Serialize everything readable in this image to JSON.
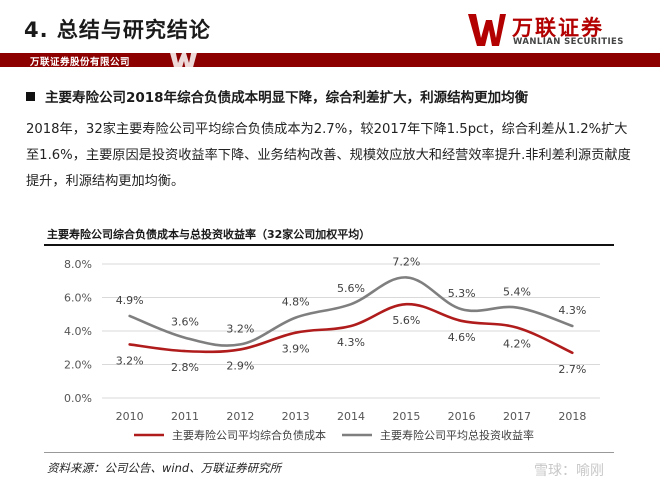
{
  "header": {
    "title": "4. 总结与研究结论",
    "logo_cn": "万联证券",
    "logo_en": "WANLIAN SECURITIES",
    "banner": "万联证券股份有限公司"
  },
  "headline": "主要寿险公司2018年综合负债成本明显下降，综合利差扩大，利源结构更加均衡",
  "body": "2018年，32家主要寿险公司平均综合负债成本为2.7%，较2017年下降1.5pct，综合利差从1.2%扩大至1.6%，主要原因是投资收益率下降、业务结构改善、规模效应放大和经营效率提升.非利差利源贡献度提升，利源结构更加均衡。",
  "source": "资料来源：公司公告、wind、万联证券研究所",
  "watermark": "雪球：喻刚",
  "colors": {
    "accent": "#8c0000",
    "series_cost": "#b01c1c",
    "series_return": "#7f7f7f"
  },
  "chart_data": {
    "type": "line",
    "title": "主要寿险公司综合负债成本与总投资收益率（32家公司加权平均）",
    "categories": [
      "2010",
      "2011",
      "2012",
      "2013",
      "2014",
      "2015",
      "2016",
      "2017",
      "2018"
    ],
    "ylim": [
      0,
      8
    ],
    "yticks": [
      "0.0%",
      "2.0%",
      "4.0%",
      "6.0%",
      "8.0%"
    ],
    "grid": true,
    "legend_position": "bottom",
    "smooth": true,
    "series": [
      {
        "name": "主要寿险公司平均综合负债成本",
        "values": [
          3.2,
          2.8,
          2.9,
          3.9,
          4.3,
          5.6,
          4.6,
          4.2,
          2.7
        ],
        "labels": [
          "3.2%",
          "2.8%",
          "2.9%",
          "3.9%",
          "4.3%",
          "5.6%",
          "4.6%",
          "4.2%",
          "2.7%"
        ],
        "label_position": "below"
      },
      {
        "name": "主要寿险公司平均总投资收益率",
        "values": [
          4.9,
          3.6,
          3.2,
          4.8,
          5.6,
          7.2,
          5.3,
          5.4,
          4.3
        ],
        "labels": [
          "4.9%",
          "3.6%",
          "3.2%",
          "4.8%",
          "5.6%",
          "7.2%",
          "5.3%",
          "5.4%",
          "4.3%"
        ],
        "label_position": "above"
      }
    ]
  }
}
